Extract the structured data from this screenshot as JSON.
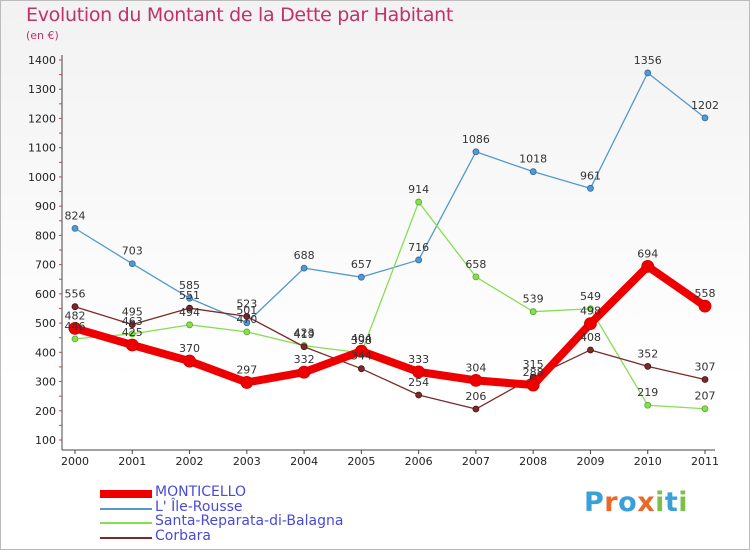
{
  "title": "Evolution du Montant de la Dette par Habitant",
  "unit_label": "(en €)",
  "chart_data": {
    "type": "line",
    "title": "Evolution du Montant de la Dette par Habitant",
    "ylabel": "(en €)",
    "xlabel": "",
    "categories": [
      "2000",
      "2001",
      "2002",
      "2003",
      "2004",
      "2005",
      "2006",
      "2007",
      "2008",
      "2009",
      "2010",
      "2011"
    ],
    "ylim": [
      100,
      1400
    ],
    "yticks": [
      100,
      200,
      300,
      400,
      500,
      600,
      700,
      800,
      900,
      1000,
      1100,
      1200,
      1300,
      1400
    ],
    "series": [
      {
        "name": "MONTICELLO",
        "color": "#ee0000",
        "values": [
          482,
          425,
          370,
          297,
          332,
          404,
          333,
          304,
          288,
          498,
          694,
          558
        ]
      },
      {
        "name": "L' Île-Rousse",
        "color": "#5599cc",
        "values": [
          824,
          703,
          585,
          501,
          688,
          657,
          716,
          1086,
          1018,
          961,
          1356,
          1202
        ]
      },
      {
        "name": "Santa-Reparata-di-Balagna",
        "color": "#88dd55",
        "values": [
          446,
          463,
          494,
          470,
          423,
          398,
          914,
          658,
          539,
          549,
          219,
          207
        ]
      },
      {
        "name": "Corbara",
        "color": "#7a2a2a",
        "values": [
          556,
          495,
          551,
          523,
          419,
          344,
          254,
          206,
          315,
          408,
          352,
          307
        ]
      }
    ]
  },
  "legend": [
    {
      "label": "MONTICELLO"
    },
    {
      "label": "L' Île-Rousse"
    },
    {
      "label": "Santa-Reparata-di-Balagna"
    },
    {
      "label": "Corbara"
    }
  ],
  "logo": {
    "text": "Proxiti",
    "letters": [
      "P",
      "r",
      "o",
      "x",
      "i",
      "t",
      "i"
    ],
    "colors": [
      "#3aa0d8",
      "#e8692a",
      "#3aa0d8",
      "#e8692a",
      "#7cc04a",
      "#3aa0d8",
      "#7cc04a"
    ]
  }
}
